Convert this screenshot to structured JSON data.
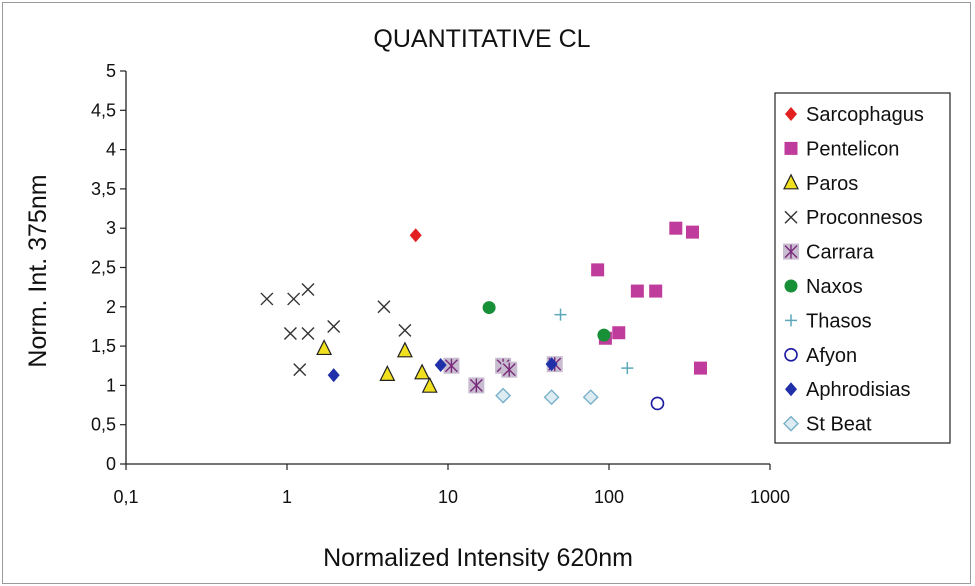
{
  "chart_data": {
    "type": "scatter",
    "title": "QUANTITATIVE CL",
    "xlabel": "Normalized Intensity 620nm",
    "ylabel": "Norm. Int. 375nm",
    "xscale": "log",
    "xlim": [
      0.1,
      1000
    ],
    "ylim": [
      0,
      5
    ],
    "x_ticks": [
      0.1,
      1,
      10,
      100,
      1000
    ],
    "x_tick_labels": [
      "0,1",
      "1",
      "10",
      "100",
      "1000"
    ],
    "y_ticks": [
      0,
      0.5,
      1,
      1.5,
      2,
      2.5,
      3,
      3.5,
      4,
      4.5,
      5
    ],
    "y_tick_labels": [
      "0",
      "0,5",
      "1",
      "1,5",
      "2",
      "2,5",
      "3",
      "3,5",
      "4",
      "4,5",
      "5"
    ],
    "grid": false,
    "legend": "right",
    "series": [
      {
        "name": "Sarcophagus",
        "marker": "diamond",
        "color": "#e32020",
        "points": [
          [
            6.3,
            2.91
          ]
        ]
      },
      {
        "name": "Pentelicon",
        "marker": "square",
        "color": "#c03c9c",
        "points": [
          [
            85,
            2.47
          ],
          [
            150,
            2.2
          ],
          [
            195,
            2.2
          ],
          [
            260,
            3.0
          ],
          [
            330,
            2.95
          ],
          [
            115,
            1.67
          ],
          [
            95,
            1.6
          ],
          [
            370,
            1.22
          ]
        ]
      },
      {
        "name": "Paros",
        "marker": "triangle",
        "color": "#f0e020",
        "points": [
          [
            1.7,
            1.47
          ],
          [
            5.4,
            1.44
          ],
          [
            4.2,
            1.14
          ],
          [
            6.9,
            1.16
          ],
          [
            7.7,
            0.99
          ]
        ]
      },
      {
        "name": "Proconnesos",
        "marker": "x",
        "color": "#333333",
        "points": [
          [
            0.75,
            2.1
          ],
          [
            1.1,
            2.1
          ],
          [
            1.35,
            2.22
          ],
          [
            1.05,
            1.66
          ],
          [
            1.35,
            1.66
          ],
          [
            1.95,
            1.75
          ],
          [
            4.0,
            2.0
          ],
          [
            5.4,
            1.7
          ],
          [
            1.2,
            1.2
          ]
        ]
      },
      {
        "name": "Carrara",
        "marker": "star-square",
        "color": "#7a2a7a",
        "points": [
          [
            10.5,
            1.25
          ],
          [
            15,
            1.0
          ],
          [
            22,
            1.25
          ],
          [
            24,
            1.2
          ],
          [
            46,
            1.27
          ]
        ]
      },
      {
        "name": "Naxos",
        "marker": "circle",
        "color": "#189038",
        "points": [
          [
            18,
            1.99
          ],
          [
            93,
            1.64
          ]
        ]
      },
      {
        "name": "Thasos",
        "marker": "plus",
        "color": "#5aa8b8",
        "points": [
          [
            50,
            1.9
          ],
          [
            130,
            1.22
          ]
        ]
      },
      {
        "name": "Afyon",
        "marker": "open-circle",
        "color": "#1a1aa0",
        "points": [
          [
            200,
            0.77
          ]
        ]
      },
      {
        "name": "Aphrodisias",
        "marker": "diamond",
        "color": "#2030a8",
        "points": [
          [
            1.95,
            1.13
          ],
          [
            9.0,
            1.26
          ],
          [
            44,
            1.27
          ]
        ]
      },
      {
        "name": "St Beat",
        "marker": "open-diamond",
        "color": "#78b0c8",
        "points": [
          [
            22,
            0.87
          ],
          [
            44,
            0.85
          ],
          [
            77,
            0.85
          ]
        ]
      }
    ]
  }
}
